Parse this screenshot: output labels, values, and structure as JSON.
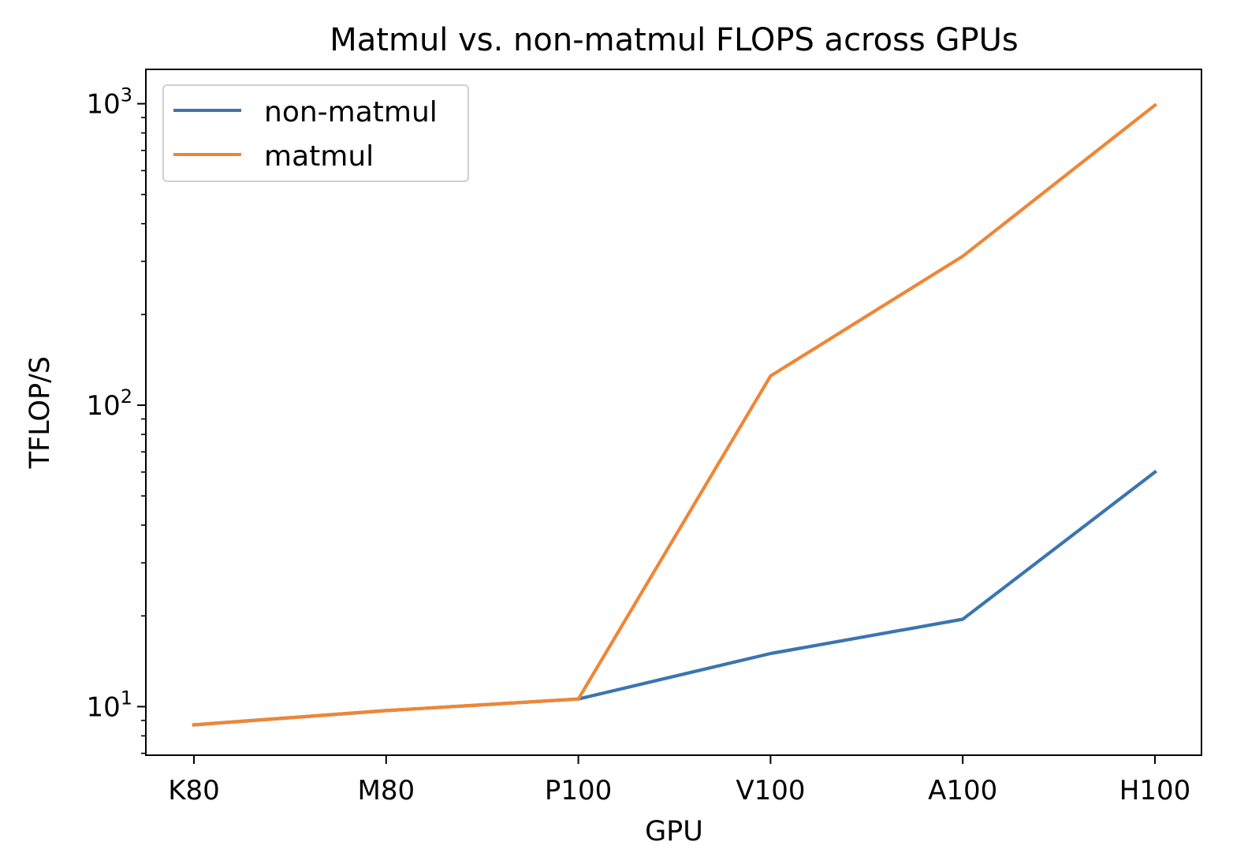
{
  "chart_data": {
    "type": "line",
    "title": "Matmul vs. non-matmul FLOPS across GPUs",
    "xlabel": "GPU",
    "ylabel": "TFLOP/S",
    "categories": [
      "K80",
      "M80",
      "P100",
      "V100",
      "A100",
      "H100"
    ],
    "y_scale": "log",
    "ylim": [
      6.9,
      1300
    ],
    "y_ticks": [
      {
        "value": 10,
        "base": "10",
        "exp": "1"
      },
      {
        "value": 100,
        "base": "10",
        "exp": "2"
      },
      {
        "value": 1000,
        "base": "10",
        "exp": "3"
      }
    ],
    "grid": false,
    "legend_position": "top-left",
    "series": [
      {
        "name": "non-matmul",
        "color": "#3a75b0",
        "values": [
          8.7,
          9.7,
          10.6,
          15.0,
          19.5,
          60
        ]
      },
      {
        "name": "matmul",
        "color": "#ef8636",
        "values": [
          8.7,
          9.7,
          10.6,
          125,
          312,
          989
        ]
      }
    ]
  }
}
